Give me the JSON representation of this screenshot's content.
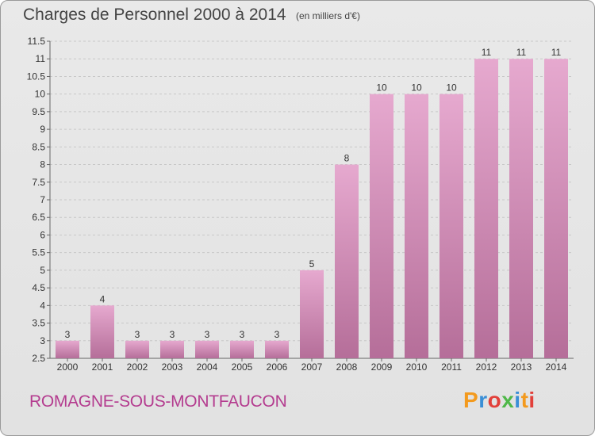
{
  "header": {
    "title": "Charges de Personnel 2000 à 2014",
    "unit": "(en milliers d'€)"
  },
  "footer": {
    "commune": "ROMAGNE-SOUS-MONTFAUCON",
    "logo": "Proxiti",
    "logo_colors": [
      "#f39a1e",
      "#3a8fd6",
      "#e2403a",
      "#4fb848",
      "#3a8fd6",
      "#f39a1e",
      "#e2403a"
    ]
  },
  "chart_data": {
    "type": "bar",
    "categories": [
      "2000",
      "2001",
      "2002",
      "2003",
      "2004",
      "2005",
      "2006",
      "2007",
      "2008",
      "2009",
      "2010",
      "2011",
      "2012",
      "2013",
      "2014"
    ],
    "values": [
      3,
      4,
      3,
      3,
      3,
      3,
      3,
      5,
      8,
      10,
      10,
      10,
      11,
      11,
      11
    ],
    "ylim": [
      2.5,
      11.5
    ],
    "yticks": [
      "2.5",
      "3",
      "3.5",
      "4",
      "4.5",
      "5",
      "5.5",
      "6",
      "6.5",
      "7",
      "7.5",
      "8",
      "8.5",
      "9",
      "9.5",
      "10",
      "10.5",
      "11",
      "11.5"
    ],
    "grid": true,
    "bar_color": "#d98fbd"
  }
}
